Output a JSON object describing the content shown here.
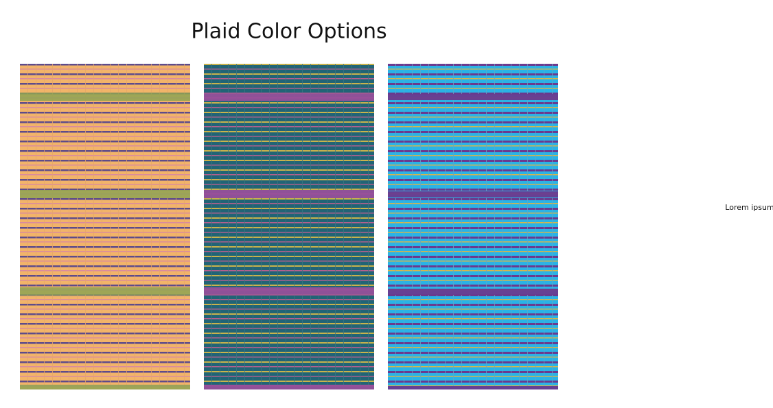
{
  "header": {
    "title": "Plaid Color Options"
  },
  "note": {
    "text": "Lorem ipsum"
  }
}
